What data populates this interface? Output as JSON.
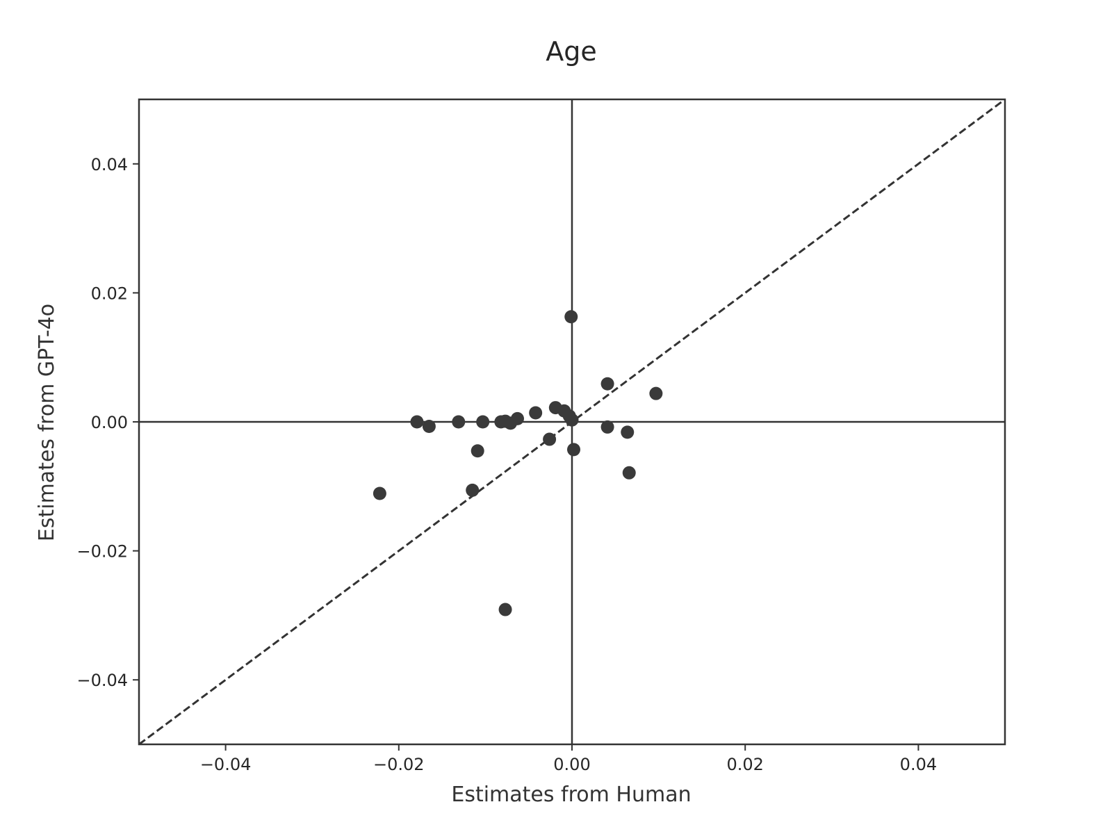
{
  "chart_data": {
    "type": "scatter",
    "title": "Age",
    "xlabel": "Estimates from Human",
    "ylabel": "Estimates from GPT-4o",
    "xlim": [
      -0.05,
      0.05
    ],
    "ylim": [
      -0.05,
      0.05
    ],
    "xticks": [
      -0.04,
      -0.02,
      0.0,
      0.02,
      0.04
    ],
    "yticks": [
      -0.04,
      -0.02,
      0.0,
      0.02,
      0.04
    ],
    "xtick_labels": [
      "−0.04",
      "−0.02",
      "0.00",
      "0.02",
      "0.04"
    ],
    "ytick_labels": [
      "−0.04",
      "−0.02",
      "0.00",
      "0.02",
      "0.04"
    ],
    "grid": false,
    "reference_lines": {
      "horizontal_y": 0,
      "vertical_x": 0,
      "diagonal": "y = x (dashed)"
    },
    "colors": {
      "points": "#3a3a3a",
      "lines": "#333333"
    },
    "points": [
      {
        "x": -0.0179,
        "y": 0.0
      },
      {
        "x": -0.0165,
        "y": -0.0007
      },
      {
        "x": -0.0131,
        "y": 0.0
      },
      {
        "x": -0.0103,
        "y": 0.0
      },
      {
        "x": -0.0109,
        "y": -0.0045
      },
      {
        "x": -0.0115,
        "y": -0.0106
      },
      {
        "x": -0.0222,
        "y": -0.0111
      },
      {
        "x": -0.0082,
        "y": 0.0
      },
      {
        "x": -0.0077,
        "y": 0.0001
      },
      {
        "x": -0.0071,
        "y": -0.0002
      },
      {
        "x": -0.0063,
        "y": 0.0005
      },
      {
        "x": -0.0042,
        "y": 0.0014
      },
      {
        "x": -0.0026,
        "y": -0.0027
      },
      {
        "x": -0.0077,
        "y": -0.0291
      },
      {
        "x": -0.0019,
        "y": 0.0022
      },
      {
        "x": -0.0009,
        "y": 0.0017
      },
      {
        "x": -0.0003,
        "y": 0.0009
      },
      {
        "x": 0.0,
        "y": 0.0003
      },
      {
        "x": -0.0001,
        "y": 0.0163
      },
      {
        "x": 0.0002,
        "y": -0.0043
      },
      {
        "x": 0.0041,
        "y": 0.0059
      },
      {
        "x": 0.0041,
        "y": -0.0008
      },
      {
        "x": 0.0064,
        "y": -0.0016
      },
      {
        "x": 0.0066,
        "y": -0.0079
      },
      {
        "x": 0.0097,
        "y": 0.0044
      }
    ]
  }
}
